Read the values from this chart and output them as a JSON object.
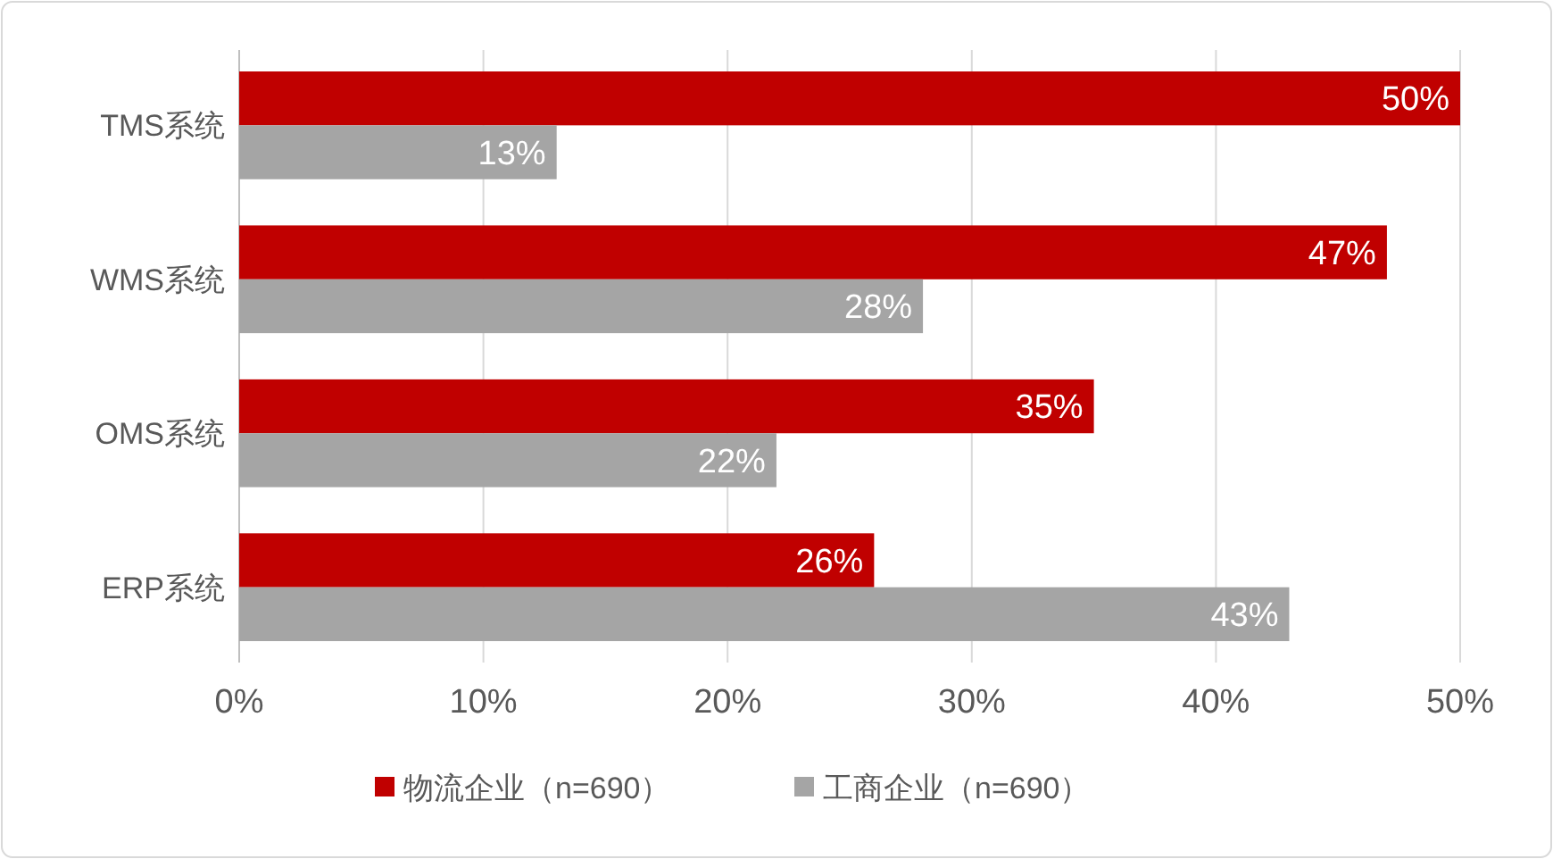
{
  "chart_data": {
    "type": "bar",
    "orientation": "horizontal",
    "categories": [
      "TMS系统",
      "WMS系统",
      "OMS系统",
      "ERP系统"
    ],
    "series": [
      {
        "name": "物流企业（n=690）",
        "color": "#c00000",
        "values": [
          50,
          47,
          35,
          26
        ]
      },
      {
        "name": "工商企业（n=690）",
        "color": "#a5a5a5",
        "values": [
          13,
          28,
          22,
          43
        ]
      }
    ],
    "xlim": [
      0,
      50
    ],
    "xticks": [
      {
        "value": 0,
        "label": "0%"
      },
      {
        "value": 10,
        "label": "10%"
      },
      {
        "value": 20,
        "label": "20%"
      },
      {
        "value": 30,
        "label": "30%"
      },
      {
        "value": 40,
        "label": "40%"
      },
      {
        "value": 50,
        "label": "50%"
      }
    ],
    "value_labels": [
      [
        "50%",
        "47%",
        "35%",
        "26%"
      ],
      [
        "13%",
        "28%",
        "22%",
        "43%"
      ]
    ],
    "grid": "x",
    "legend": "bottom"
  }
}
